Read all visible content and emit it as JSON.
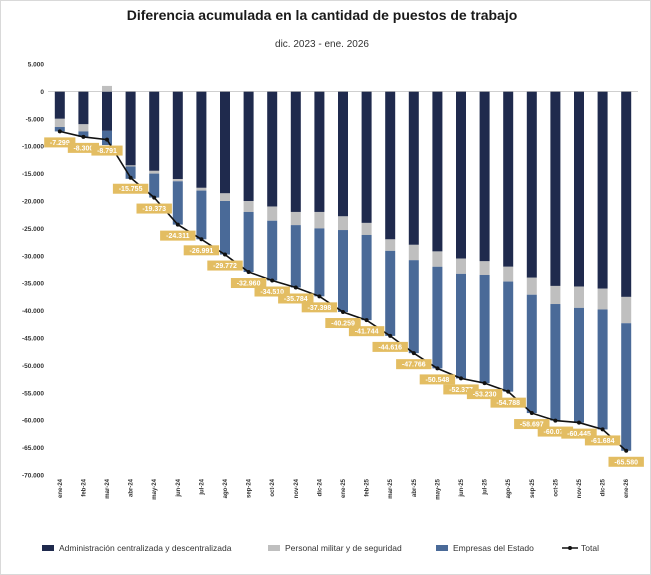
{
  "chart_data": {
    "type": "bar",
    "title": "Diferencia acumulada en la cantidad de puestos de trabajo",
    "subtitle": "dic. 2023 - ene. 2026",
    "ylim": [
      -70000,
      5000
    ],
    "yticks": [
      5000,
      0,
      -5000,
      -10000,
      -15000,
      -20000,
      -25000,
      -30000,
      -35000,
      -40000,
      -45000,
      -50000,
      -55000,
      -60000,
      -65000,
      -70000
    ],
    "ytick_labels": [
      "5.000",
      "0",
      "-5.000",
      "-10.000",
      "-15.000",
      "-20.000",
      "-25.000",
      "-30.000",
      "-35.000",
      "-40.000",
      "-45.000",
      "-50.000",
      "-55.000",
      "-60.000",
      "-65.000",
      "-70.000"
    ],
    "categories": [
      "ene-24",
      "feb-24",
      "mar-24",
      "abr-24",
      "may-24",
      "jun-24",
      "jul-24",
      "ago-24",
      "sep-24",
      "oct-24",
      "nov-24",
      "dic-24",
      "ene-25",
      "feb-25",
      "mar-25",
      "abr-25",
      "may-25",
      "jun-25",
      "jul-25",
      "ago-25",
      "sep-25",
      "oct-25",
      "nov-25",
      "dic-25",
      "ene-26"
    ],
    "series": [
      {
        "name": "Administración centralizada y descentralizada",
        "color": "#1f2a4d",
        "type": "bar",
        "values": [
          -5000,
          -6000,
          -7200,
          -13500,
          -14500,
          -16000,
          -17600,
          -18600,
          -20000,
          -21000,
          -22000,
          -22000,
          -22800,
          -24000,
          -27000,
          -28000,
          -29200,
          -30500,
          -31000,
          -32000,
          -34000,
          -35500,
          -35600,
          -36000,
          -37500
        ]
      },
      {
        "name": "Personal militar y de seguridad",
        "color": "#bfbfbf",
        "type": "bar",
        "values": [
          -1500,
          -1300,
          1000,
          -200,
          -500,
          -400,
          -500,
          -1400,
          -2000,
          -2600,
          -2400,
          -3000,
          -2500,
          -2200,
          -2100,
          -2800,
          -2800,
          -2800,
          -2500,
          -2700,
          -3100,
          -3300,
          -3900,
          -3800,
          -4800
        ]
      },
      {
        "name": "Empresas del Estado",
        "color": "#4a6a98",
        "type": "bar",
        "values": [
          -800,
          -1000,
          -2591,
          -2255,
          -4373,
          -7911,
          -8891,
          -9772,
          -10960,
          -10910,
          -11384,
          -12398,
          -14959,
          -15544,
          -15516,
          -16966,
          -18548,
          -19077,
          -19730,
          -20088,
          -21597,
          -21270,
          -20945,
          -21884,
          -23280
        ]
      },
      {
        "name": "Total",
        "color": "#111111",
        "type": "line",
        "values": [
          -7299,
          -8300,
          -8791,
          -15755,
          -19373,
          -24311,
          -26991,
          -29772,
          -32960,
          -34510,
          -35784,
          -37398,
          -40259,
          -41744,
          -44616,
          -47766,
          -50548,
          -52377,
          -53230,
          -54788,
          -58697,
          -60070,
          -60445,
          -61684,
          -65580
        ]
      }
    ],
    "total_labels": [
      "-7.299",
      "-8.300",
      "-8.791",
      "-15.755",
      "-19.373",
      "-24.311",
      "-26.991",
      "-29.772",
      "-32.960",
      "-34.510",
      "-35.784",
      "-37.398",
      "-40.259",
      "-41.744",
      "-44.616",
      "-47.766",
      "-50.548",
      "-52.377",
      "-53.230",
      "-54.788",
      "-58.697",
      "-60.070",
      "-60.445",
      "-61.684",
      "-65.580"
    ],
    "label_color": "#e3bd62",
    "legend": {
      "placement": "bottom",
      "items": [
        {
          "label": "Administración centralizada y descentralizada",
          "swatch": "bar",
          "color": "#1f2a4d"
        },
        {
          "label": "Personal militar y de seguridad",
          "swatch": "bar",
          "color": "#bfbfbf"
        },
        {
          "label": "Empresas del Estado",
          "swatch": "bar",
          "color": "#4a6a98"
        },
        {
          "label": "Total",
          "swatch": "line",
          "color": "#111111"
        }
      ]
    },
    "grid": false
  }
}
